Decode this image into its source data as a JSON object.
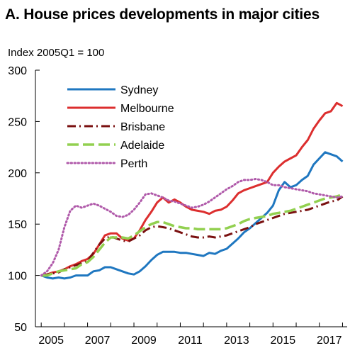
{
  "chart_data": {
    "type": "line",
    "title": "A. House prices developments in major cities",
    "ylabel": "Index 2005Q1 = 100",
    "xlabel": "",
    "ylim": [
      50,
      300
    ],
    "yticks": [
      50,
      100,
      150,
      200,
      250,
      300
    ],
    "xlim": [
      2004.75,
      2018.2
    ],
    "xticks": [
      2005,
      2007,
      2009,
      2011,
      2013,
      2015,
      2017
    ],
    "grid": false,
    "legend_position": "top-left",
    "series": [
      {
        "name": "Sydney",
        "color": "#1f77c0",
        "dash": "solid",
        "x": [
          2005.0,
          2005.25,
          2005.5,
          2005.75,
          2006.0,
          2006.25,
          2006.5,
          2006.75,
          2007.0,
          2007.25,
          2007.5,
          2007.75,
          2008.0,
          2008.25,
          2008.5,
          2008.75,
          2009.0,
          2009.25,
          2009.5,
          2009.75,
          2010.0,
          2010.25,
          2010.5,
          2010.75,
          2011.0,
          2011.25,
          2011.5,
          2011.75,
          2012.0,
          2012.25,
          2012.5,
          2012.75,
          2013.0,
          2013.25,
          2013.5,
          2013.75,
          2014.0,
          2014.25,
          2014.5,
          2014.75,
          2015.0,
          2015.25,
          2015.5,
          2015.75,
          2016.0,
          2016.25,
          2016.5,
          2016.75,
          2017.0,
          2017.25,
          2017.5,
          2017.75,
          2018.0
        ],
        "y": [
          100,
          98,
          97,
          98,
          97,
          98,
          100,
          100,
          100,
          104,
          105,
          108,
          108,
          106,
          104,
          102,
          101,
          104,
          109,
          115,
          120,
          123,
          123,
          123,
          122,
          122,
          121,
          120,
          119,
          122,
          121,
          124,
          126,
          131,
          136,
          142,
          146,
          151,
          156,
          161,
          168,
          183,
          191,
          186,
          188,
          193,
          197,
          208,
          214,
          220,
          218,
          216,
          211
        ]
      },
      {
        "name": "Melbourne",
        "color": "#dc2e2e",
        "dash": "solid",
        "x": [
          2005.0,
          2005.25,
          2005.5,
          2005.75,
          2006.0,
          2006.25,
          2006.5,
          2006.75,
          2007.0,
          2007.25,
          2007.5,
          2007.75,
          2008.0,
          2008.25,
          2008.5,
          2008.75,
          2009.0,
          2009.25,
          2009.5,
          2009.75,
          2010.0,
          2010.25,
          2010.5,
          2010.75,
          2011.0,
          2011.25,
          2011.5,
          2011.75,
          2012.0,
          2012.25,
          2012.5,
          2012.75,
          2013.0,
          2013.25,
          2013.5,
          2013.75,
          2014.0,
          2014.25,
          2014.5,
          2014.75,
          2015.0,
          2015.25,
          2015.5,
          2015.75,
          2016.0,
          2016.25,
          2016.5,
          2016.75,
          2017.0,
          2017.25,
          2017.5,
          2017.75,
          2018.0
        ],
        "y": [
          100,
          101,
          103,
          104,
          106,
          109,
          111,
          114,
          116,
          121,
          130,
          139,
          141,
          141,
          136,
          134,
          136,
          144,
          154,
          162,
          171,
          176,
          171,
          174,
          171,
          167,
          164,
          163,
          162,
          160,
          163,
          164,
          167,
          173,
          180,
          183,
          185,
          187,
          189,
          191,
          200,
          206,
          211,
          214,
          217,
          225,
          232,
          243,
          251,
          258,
          260,
          268,
          265
        ]
      },
      {
        "name": "Brisbane",
        "color": "#7a1010",
        "dash": "dashdot",
        "x": [
          2005.0,
          2005.25,
          2005.5,
          2005.75,
          2006.0,
          2006.25,
          2006.5,
          2006.75,
          2007.0,
          2007.25,
          2007.5,
          2007.75,
          2008.0,
          2008.25,
          2008.5,
          2008.75,
          2009.0,
          2009.25,
          2009.5,
          2009.75,
          2010.0,
          2010.25,
          2010.5,
          2010.75,
          2011.0,
          2011.25,
          2011.5,
          2011.75,
          2012.0,
          2012.25,
          2012.5,
          2012.75,
          2013.0,
          2013.25,
          2013.5,
          2013.75,
          2014.0,
          2014.25,
          2014.5,
          2014.75,
          2015.0,
          2015.25,
          2015.5,
          2015.75,
          2016.0,
          2016.25,
          2016.5,
          2016.75,
          2017.0,
          2017.25,
          2017.5,
          2017.75,
          2018.0
        ],
        "y": [
          100,
          101,
          102,
          103,
          106,
          108,
          110,
          112,
          114,
          122,
          130,
          136,
          138,
          136,
          134,
          133,
          136,
          139,
          144,
          147,
          148,
          147,
          146,
          144,
          142,
          140,
          138,
          137,
          137,
          138,
          137,
          138,
          139,
          141,
          143,
          145,
          147,
          150,
          152,
          154,
          156,
          158,
          160,
          161,
          162,
          163,
          164,
          166,
          168,
          170,
          172,
          173,
          177
        ]
      },
      {
        "name": "Adelaide",
        "color": "#92d050",
        "dash": "longdash",
        "x": [
          2005.0,
          2005.25,
          2005.5,
          2005.75,
          2006.0,
          2006.25,
          2006.5,
          2006.75,
          2007.0,
          2007.25,
          2007.5,
          2007.75,
          2008.0,
          2008.25,
          2008.5,
          2008.75,
          2009.0,
          2009.25,
          2009.5,
          2009.75,
          2010.0,
          2010.25,
          2010.5,
          2010.75,
          2011.0,
          2011.25,
          2011.5,
          2011.75,
          2012.0,
          2012.25,
          2012.5,
          2012.75,
          2013.0,
          2013.25,
          2013.5,
          2013.75,
          2014.0,
          2014.25,
          2014.5,
          2014.75,
          2015.0,
          2015.25,
          2015.5,
          2015.75,
          2016.0,
          2016.25,
          2016.5,
          2016.75,
          2017.0,
          2017.25,
          2017.5,
          2017.75,
          2018.0
        ],
        "y": [
          100,
          100,
          102,
          104,
          105,
          106,
          107,
          111,
          113,
          118,
          125,
          132,
          137,
          137,
          137,
          136,
          139,
          143,
          147,
          150,
          152,
          152,
          150,
          148,
          147,
          146,
          146,
          145,
          145,
          145,
          145,
          145,
          146,
          148,
          150,
          153,
          155,
          156,
          157,
          158,
          160,
          161,
          162,
          163,
          165,
          167,
          169,
          171,
          173,
          175,
          176,
          177,
          179
        ]
      },
      {
        "name": "Perth",
        "color": "#b05aaa",
        "dash": "dotted",
        "x": [
          2005.0,
          2005.25,
          2005.5,
          2005.75,
          2006.0,
          2006.25,
          2006.5,
          2006.75,
          2007.0,
          2007.25,
          2007.5,
          2007.75,
          2008.0,
          2008.25,
          2008.5,
          2008.75,
          2009.0,
          2009.25,
          2009.5,
          2009.75,
          2010.0,
          2010.25,
          2010.5,
          2010.75,
          2011.0,
          2011.25,
          2011.5,
          2011.75,
          2012.0,
          2012.25,
          2012.5,
          2012.75,
          2013.0,
          2013.25,
          2013.5,
          2013.75,
          2014.0,
          2014.25,
          2014.5,
          2014.75,
          2015.0,
          2015.25,
          2015.5,
          2015.75,
          2016.0,
          2016.25,
          2016.5,
          2016.75,
          2017.0,
          2017.25,
          2017.5,
          2017.75,
          2018.0
        ],
        "y": [
          100,
          104,
          112,
          125,
          147,
          163,
          168,
          166,
          168,
          170,
          168,
          165,
          162,
          158,
          157,
          159,
          164,
          171,
          179,
          180,
          178,
          176,
          173,
          172,
          170,
          168,
          166,
          167,
          169,
          172,
          176,
          180,
          184,
          187,
          191,
          193,
          193,
          194,
          193,
          191,
          188,
          188,
          186,
          185,
          184,
          183,
          182,
          180,
          179,
          178,
          177,
          176,
          177
        ]
      }
    ]
  }
}
